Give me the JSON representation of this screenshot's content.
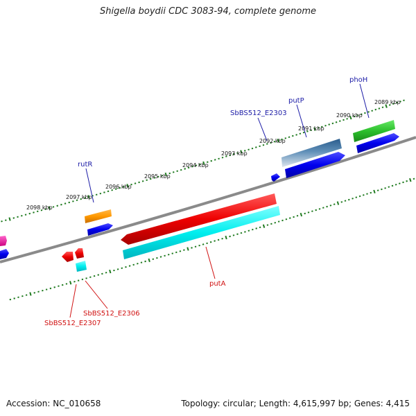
{
  "title": "Shigella boydii CDC 3083-94, complete genome",
  "footer": {
    "accession": "Accession: NC_010658",
    "summary": "Topology: circular; Length: 4,615,997 bp; Genes: 4,415"
  },
  "ticks": [
    "2098 kbp",
    "2097 kbp",
    "2096 kbp",
    "2095 kbp",
    "2094 kbp",
    "2093 kbp",
    "2092 kbp",
    "2091 kbp",
    "2090 kbp",
    "2089 kbp"
  ],
  "gene_labels": {
    "rutR": "rutR",
    "putP": "putP",
    "phoH": "phoH",
    "sb2303": "SbBS512_E2303",
    "putA": "putA",
    "sb2306": "SbBS512_E2306",
    "sb2307": "SbBS512_E2307"
  },
  "colors": {
    "forward_label": "#1a1aa6",
    "reverse_label": "#d01010",
    "backbone": "#808080",
    "tick": "#1f7a1f"
  }
}
